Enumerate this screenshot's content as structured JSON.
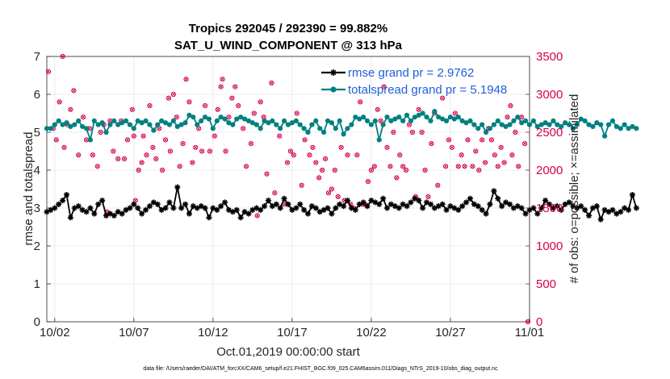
{
  "chart_data": {
    "type": "line",
    "title_line1": "Tropics 292045 / 292390 = 99.882%",
    "title_line2": "SAT_U_WIND_COMPONENT @ 313 hPa",
    "xlabel": "Oct.01,2019 00:00:00 start",
    "ylabel_left": "rmse and totalspread",
    "ylabel_right": "# of obs: o=possible; ×=assimilated",
    "ylim_left": [
      0,
      7
    ],
    "ylim_right": [
      0,
      3500
    ],
    "xlim": [
      0.5,
      31
    ],
    "left_ticks": [
      "0",
      "1",
      "2",
      "3",
      "4",
      "5",
      "6",
      "7"
    ],
    "right_ticks": [
      "0",
      "500",
      "1000",
      "1500",
      "2000",
      "2500",
      "3000",
      "3500"
    ],
    "x_tick_labels": [
      {
        "label": "10/02",
        "day": 1
      },
      {
        "label": "10/07",
        "day": 6
      },
      {
        "label": "10/12",
        "day": 11
      },
      {
        "label": "10/17",
        "day": 16
      },
      {
        "label": "10/22",
        "day": 21
      },
      {
        "label": "10/27",
        "day": 26
      },
      {
        "label": "11/01",
        "day": 31
      }
    ],
    "legend_position": "top-right",
    "footer": "data file: /Users/raeder/DAI/ATM_forcXX/CAM6_setup/f.e21.FHIST_BGC.f09_025.CAM6assim.011/Diags_NTrS_2019-10/obs_diag_output.nc",
    "colors": {
      "rmse": "#000000",
      "spread": "#008080",
      "obs": "#d4004f",
      "right_axis": "#d4004f",
      "grid": "#e6e6e6"
    },
    "series": [
      {
        "name": "rmse grand pr = 2.9762",
        "key": "rmse",
        "x_start": 0.5,
        "x_step": 0.25,
        "values": [
          2.9,
          2.95,
          3.0,
          3.1,
          3.2,
          3.35,
          2.75,
          3.0,
          3.05,
          2.95,
          2.9,
          3.0,
          2.85,
          3.1,
          3.2,
          2.8,
          2.85,
          2.8,
          2.9,
          2.85,
          2.95,
          3.0,
          3.1,
          3.0,
          2.85,
          2.95,
          3.05,
          3.15,
          3.1,
          2.95,
          3.0,
          3.15,
          3.0,
          3.55,
          3.0,
          3.1,
          2.85,
          3.05,
          3.0,
          3.05,
          3.0,
          2.75,
          3.0,
          2.95,
          3.05,
          3.15,
          2.95,
          2.9,
          2.95,
          2.75,
          2.9,
          2.85,
          2.95,
          3.0,
          2.95,
          3.05,
          3.2,
          3.05,
          3.1,
          3.0,
          3.25,
          3.1,
          2.95,
          3.0,
          3.1,
          2.95,
          2.85,
          3.05,
          3.0,
          2.9,
          2.95,
          3.0,
          2.85,
          3.0,
          3.1,
          3.05,
          3.2,
          3.0,
          2.95,
          3.1,
          3.15,
          3.05,
          3.2,
          3.15,
          3.1,
          3.25,
          3.0,
          3.1,
          3.05,
          3.0,
          3.1,
          3.05,
          3.15,
          3.25,
          3.2,
          3.0,
          3.15,
          3.1,
          3.0,
          3.05,
          3.1,
          2.95,
          3.05,
          3.0,
          2.95,
          3.05,
          3.15,
          3.25,
          3.1,
          3.05,
          2.95,
          2.85,
          3.1,
          3.45,
          3.25,
          3.05,
          3.15,
          3.1,
          3.0,
          3.05,
          3.0,
          2.85,
          2.95,
          3.0,
          2.85,
          3.0,
          3.2,
          3.1,
          3.0,
          3.05,
          2.95,
          3.1,
          3.15,
          3.05,
          3.0,
          3.05,
          2.95,
          2.8,
          3.0,
          3.05,
          2.7,
          2.95,
          2.9,
          2.95,
          2.85,
          2.9,
          3.0,
          2.95,
          3.35,
          3.0
        ]
      },
      {
        "name": "totalspread grand pr = 5.1948",
        "key": "spread",
        "x_start": 0.5,
        "x_step": 0.25,
        "values": [
          5.1,
          5.1,
          5.2,
          5.3,
          5.2,
          5.25,
          5.15,
          5.2,
          5.3,
          5.15,
          5.1,
          4.8,
          5.3,
          5.2,
          5.25,
          5.0,
          5.2,
          5.3,
          5.2,
          5.25,
          5.3,
          5.2,
          5.1,
          5.3,
          5.25,
          5.3,
          5.2,
          5.05,
          5.2,
          5.3,
          5.25,
          5.2,
          5.3,
          5.15,
          5.2,
          5.25,
          5.45,
          5.4,
          5.2,
          5.3,
          5.4,
          5.35,
          5.1,
          5.3,
          5.4,
          5.35,
          5.25,
          5.2,
          5.35,
          5.4,
          5.35,
          5.3,
          5.25,
          5.2,
          5.1,
          5.3,
          5.25,
          5.3,
          5.2,
          5.1,
          5.3,
          5.2,
          5.25,
          5.3,
          5.2,
          5.1,
          5.0,
          5.2,
          5.3,
          5.1,
          5.0,
          5.3,
          5.25,
          5.1,
          5.3,
          4.95,
          5.1,
          5.2,
          5.4,
          5.35,
          5.4,
          5.3,
          5.2,
          5.3,
          4.8,
          5.2,
          5.4,
          5.3,
          5.35,
          5.4,
          5.3,
          5.45,
          5.3,
          5.4,
          5.45,
          5.5,
          5.4,
          5.3,
          5.55,
          5.4,
          5.35,
          5.3,
          5.4,
          5.35,
          5.4,
          5.3,
          5.25,
          5.3,
          5.2,
          5.1,
          5.2,
          5.0,
          5.1,
          5.2,
          5.3,
          5.2,
          5.15,
          5.2,
          5.3,
          5.4,
          5.25,
          5.3,
          5.2,
          5.3,
          5.15,
          5.2,
          5.25,
          5.2,
          5.3,
          5.2,
          5.15,
          5.25,
          5.2,
          5.1,
          5.2,
          5.35,
          5.3,
          5.2,
          5.15,
          5.25,
          5.2,
          4.9,
          5.2,
          5.3,
          5.15,
          5.1,
          5.2,
          5.1,
          5.15,
          5.1
        ]
      }
    ],
    "obs_series": {
      "name": "observation counts",
      "points": [
        [
          0.6,
          3300
        ],
        [
          0.9,
          2550
        ],
        [
          1.1,
          2400
        ],
        [
          1.3,
          2900
        ],
        [
          1.5,
          3500
        ],
        [
          1.6,
          2300
        ],
        [
          1.8,
          2600
        ],
        [
          2.0,
          2800
        ],
        [
          2.2,
          3050
        ],
        [
          2.5,
          2200
        ],
        [
          2.8,
          2700
        ],
        [
          3.0,
          2400
        ],
        [
          3.2,
          2550
        ],
        [
          3.4,
          2200
        ],
        [
          3.7,
          2050
        ],
        [
          3.9,
          2500
        ],
        [
          4.1,
          2600
        ],
        [
          4.3,
          1450
        ],
        [
          4.5,
          2650
        ],
        [
          4.7,
          2250
        ],
        [
          5.0,
          2150
        ],
        [
          5.2,
          2650
        ],
        [
          5.4,
          2150
        ],
        [
          5.6,
          2400
        ],
        [
          5.9,
          2800
        ],
        [
          6.0,
          2450
        ],
        [
          6.1,
          1600
        ],
        [
          6.3,
          2000
        ],
        [
          6.5,
          2100
        ],
        [
          6.6,
          2450
        ],
        [
          6.8,
          2200
        ],
        [
          7.0,
          2850
        ],
        [
          7.2,
          2300
        ],
        [
          7.4,
          2150
        ],
        [
          7.6,
          2550
        ],
        [
          7.8,
          2000
        ],
        [
          8.0,
          2400
        ],
        [
          8.2,
          2950
        ],
        [
          8.3,
          2250
        ],
        [
          8.5,
          3000
        ],
        [
          8.7,
          2700
        ],
        [
          8.9,
          2050
        ],
        [
          9.1,
          2350
        ],
        [
          9.3,
          3200
        ],
        [
          9.5,
          2900
        ],
        [
          9.7,
          2100
        ],
        [
          9.9,
          2300
        ],
        [
          10.1,
          2550
        ],
        [
          10.3,
          2250
        ],
        [
          10.5,
          2850
        ],
        [
          10.8,
          2250
        ],
        [
          11.1,
          2450
        ],
        [
          11.3,
          2800
        ],
        [
          11.5,
          3100
        ],
        [
          11.6,
          3200
        ],
        [
          11.8,
          2250
        ],
        [
          12.0,
          2700
        ],
        [
          12.2,
          2950
        ],
        [
          12.4,
          3100
        ],
        [
          12.6,
          2850
        ],
        [
          12.9,
          2550
        ],
        [
          13.1,
          2050
        ],
        [
          13.4,
          2350
        ],
        [
          13.6,
          2750
        ],
        [
          13.8,
          1400
        ],
        [
          14.0,
          2900
        ],
        [
          14.2,
          2700
        ],
        [
          14.4,
          1950
        ],
        [
          14.7,
          3150
        ],
        [
          14.9,
          1700
        ],
        [
          15.2,
          2450
        ],
        [
          15.5,
          1550
        ],
        [
          15.7,
          2100
        ],
        [
          15.9,
          2250
        ],
        [
          16.1,
          2200
        ],
        [
          16.3,
          2750
        ],
        [
          16.6,
          1800
        ],
        [
          16.8,
          2400
        ],
        [
          17.1,
          2200
        ],
        [
          17.3,
          2300
        ],
        [
          17.5,
          2100
        ],
        [
          17.7,
          1900
        ],
        [
          17.9,
          2000
        ],
        [
          18.1,
          2150
        ],
        [
          18.3,
          1700
        ],
        [
          18.5,
          1750
        ],
        [
          18.7,
          2000
        ],
        [
          18.9,
          1650
        ],
        [
          19.1,
          2300
        ],
        [
          19.3,
          1600
        ],
        [
          19.5,
          2200
        ],
        [
          19.7,
          1550
        ],
        [
          19.9,
          1500
        ],
        [
          20.1,
          2200
        ],
        [
          20.3,
          2900
        ],
        [
          20.5,
          1550
        ],
        [
          20.6,
          1550
        ],
        [
          20.8,
          1850
        ],
        [
          21.0,
          2000
        ],
        [
          21.2,
          2050
        ],
        [
          21.4,
          2800
        ],
        [
          21.6,
          2650
        ],
        [
          21.8,
          3100
        ],
        [
          22.0,
          2300
        ],
        [
          22.2,
          2050
        ],
        [
          22.4,
          2500
        ],
        [
          22.6,
          1900
        ],
        [
          22.8,
          2200
        ],
        [
          23.0,
          2050
        ],
        [
          23.2,
          2000
        ],
        [
          23.4,
          2600
        ],
        [
          23.6,
          2500
        ],
        [
          23.8,
          1650
        ],
        [
          24.0,
          2800
        ],
        [
          24.2,
          2500
        ],
        [
          24.4,
          2000
        ],
        [
          24.6,
          1650
        ],
        [
          24.8,
          2350
        ],
        [
          25.0,
          2750
        ],
        [
          25.2,
          1800
        ],
        [
          25.5,
          2950
        ],
        [
          25.7,
          2050
        ],
        [
          25.9,
          2400
        ],
        [
          26.1,
          2300
        ],
        [
          26.3,
          2750
        ],
        [
          26.5,
          2050
        ],
        [
          26.7,
          2200
        ],
        [
          26.9,
          2050
        ],
        [
          27.1,
          2400
        ],
        [
          27.4,
          2050
        ],
        [
          27.6,
          2250
        ],
        [
          27.8,
          2000
        ],
        [
          28.0,
          2400
        ],
        [
          28.2,
          2100
        ],
        [
          28.4,
          2550
        ],
        [
          28.6,
          2400
        ],
        [
          28.8,
          2200
        ],
        [
          29.0,
          2050
        ],
        [
          29.2,
          2300
        ],
        [
          29.4,
          2100
        ],
        [
          29.6,
          2700
        ],
        [
          29.8,
          2850
        ],
        [
          29.9,
          2200
        ],
        [
          30.1,
          2500
        ],
        [
          30.3,
          2050
        ],
        [
          30.5,
          2700
        ],
        [
          30.7,
          2350
        ],
        [
          30.9,
          0
        ]
      ]
    }
  }
}
